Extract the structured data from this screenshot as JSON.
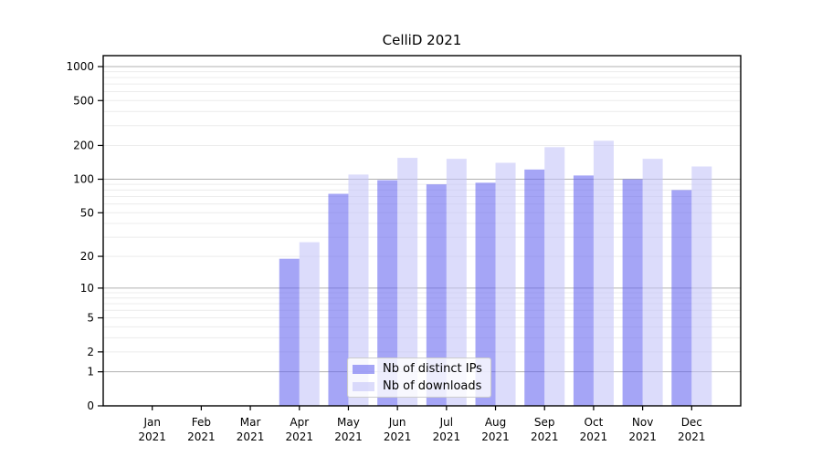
{
  "chart_data": {
    "type": "bar",
    "title": "CelliD 2021",
    "yscale": "symlog",
    "grid": true,
    "legend_position": "lower center (inside axes)",
    "months": [
      "Jan",
      "Feb",
      "Mar",
      "Apr",
      "May",
      "Jun",
      "Jul",
      "Aug",
      "Sep",
      "Oct",
      "Nov",
      "Dec"
    ],
    "year_label": "2021",
    "categories": [
      "Jan 2021",
      "Feb 2021",
      "Mar 2021",
      "Apr 2021",
      "May 2021",
      "Jun 2021",
      "Jul 2021",
      "Aug 2021",
      "Sep 2021",
      "Oct 2021",
      "Nov 2021",
      "Dec 2021"
    ],
    "y_ticks": [
      0,
      1,
      2,
      5,
      10,
      20,
      50,
      100,
      200,
      500,
      1000
    ],
    "ylim": [
      0,
      1250
    ],
    "xlabel": "",
    "ylabel": "",
    "series": [
      {
        "name": "Nb of distinct IPs",
        "color": "#6464f0",
        "values": [
          0,
          0,
          0,
          19,
          74,
          98,
          90,
          93,
          122,
          108,
          100,
          80
        ]
      },
      {
        "name": "Nb of downloads",
        "color": "#c3c3f8",
        "values": [
          0,
          0,
          0,
          27,
          110,
          155,
          152,
          140,
          193,
          220,
          152,
          130
        ]
      }
    ],
    "colors": {
      "major_grid": "#b0b0b0",
      "minor_grid": "#ececec",
      "axis": "#000000",
      "bar_alpha": 0.58
    }
  }
}
